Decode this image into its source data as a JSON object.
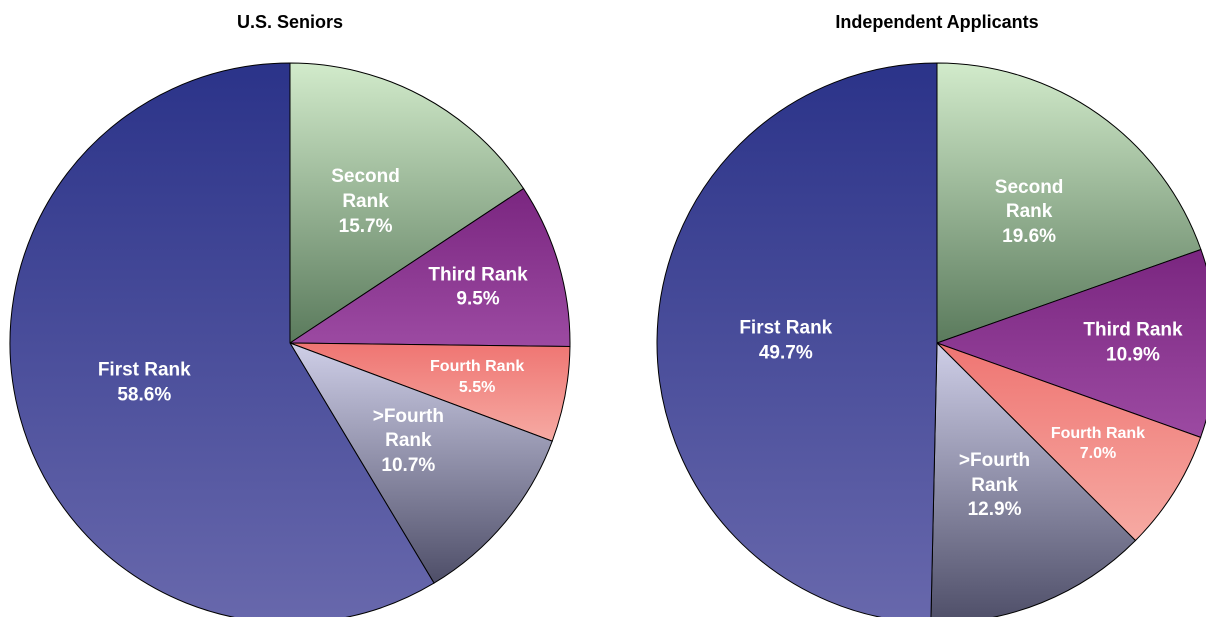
{
  "chart_data": [
    {
      "type": "pie",
      "title": "U.S. Seniors",
      "categories": [
        "Second Rank",
        "Third Rank",
        "Fourth Rank",
        ">Fourth Rank",
        "First Rank"
      ],
      "values": [
        15.7,
        9.5,
        5.5,
        10.7,
        58.6
      ],
      "value_labels": [
        "15.7%",
        "9.5%",
        "5.5%",
        "10.7%",
        "58.6%"
      ],
      "colors": [
        [
          "#d2ebcb",
          "#5a7a5c"
        ],
        [
          "#7a2680",
          "#9c4aa2"
        ],
        [
          "#ef7572",
          "#f6aaa3"
        ],
        [
          "#cfcfe8",
          "#4e4e68"
        ],
        [
          "#2b3389",
          "#6868ac"
        ]
      ]
    },
    {
      "type": "pie",
      "title": "Independent Applicants",
      "categories": [
        "Second Rank",
        "Third Rank",
        "Fourth Rank",
        ">Fourth Rank",
        "First Rank"
      ],
      "values": [
        19.6,
        10.9,
        7.0,
        12.9,
        49.7
      ],
      "value_labels": [
        "19.6%",
        "10.9%",
        "7.0%",
        "12.9%",
        "49.7%"
      ],
      "colors": [
        [
          "#d2ebcb",
          "#5a7a5c"
        ],
        [
          "#7a2680",
          "#9c4aa2"
        ],
        [
          "#ef7572",
          "#f6aaa3"
        ],
        [
          "#cfcfe8",
          "#4e4e68"
        ],
        [
          "#2b3389",
          "#6868ac"
        ]
      ]
    }
  ]
}
